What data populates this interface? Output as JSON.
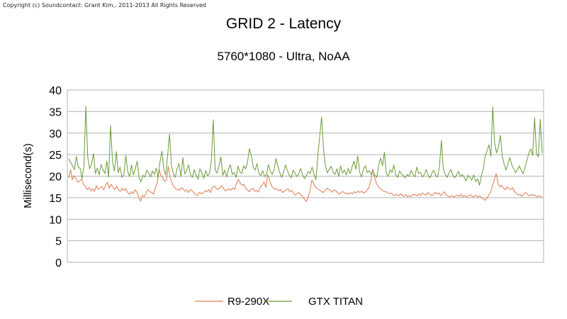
{
  "copyright": "Copyright (c) Soundcontact: Grant Kim,. 2011-2013 All Rights Reserved",
  "chart_data": {
    "type": "line",
    "title": "GRID 2 - Latency",
    "subtitle": "5760*1080 - Ultra, NoAA",
    "xlabel": "",
    "ylabel": "Millisecond(s)",
    "ylim": [
      0,
      40
    ],
    "yticks": [
      "0",
      "5",
      "10",
      "15",
      "20",
      "25",
      "30",
      "35",
      "40"
    ],
    "grid": "horizontal",
    "legend_position": "bottom",
    "series": [
      {
        "name": "R9-290X",
        "color": "#e07a4b",
        "values": [
          19.6,
          21.5,
          19.2,
          20.1,
          19.4,
          18.6,
          18.9,
          19.3,
          18.1,
          17.6,
          16.9,
          17.4,
          16.6,
          17.1,
          16.5,
          17.8,
          16.9,
          17.3,
          17.6,
          16.8,
          17.9,
          18.6,
          17.2,
          18.1,
          17.4,
          16.9,
          17.7,
          16.8,
          16.5,
          17.2,
          16.7,
          17.1,
          16.2,
          15.8,
          16.4,
          15.9,
          16.8,
          16.3,
          15.1,
          14.2,
          15.6,
          15.2,
          16.1,
          16.9,
          16.4,
          16.2,
          15.8,
          17.3,
          18.4,
          21.5,
          20.2,
          19.6,
          18.8,
          19.1,
          22.3,
          19.7,
          18.4,
          17.6,
          17.1,
          16.9,
          16.7,
          17.3,
          17.1,
          16.5,
          16.8,
          16.2,
          16.9,
          16.6,
          16.1,
          15.7,
          15.5,
          16.3,
          15.9,
          16.1,
          16.6,
          16.4,
          16.9,
          16.2,
          17.4,
          17.7,
          17.2,
          16.9,
          17.3,
          17.8,
          17.1,
          16.6,
          16.8,
          17.1,
          16.7,
          17.3,
          16.9,
          18.2,
          19.3,
          18.5,
          17.9,
          18.1,
          17.2,
          16.8,
          16.4,
          16.9,
          17.2,
          16.5,
          16.7,
          16.3,
          17.4,
          17.9,
          18.7,
          17.4,
          20.4,
          19.1,
          17.8,
          17.3,
          16.9,
          17.1,
          16.6,
          16.9,
          16.2,
          16.5,
          16.8,
          17.1,
          16.4,
          16.7,
          16.1,
          15.6,
          15.9,
          16.2,
          15.6,
          15.3,
          14.6,
          14.1,
          15.3,
          16.7,
          19.1,
          18.2,
          17.4,
          17.1,
          16.8,
          16.5,
          16.2,
          16.6,
          17.2,
          16.9,
          16.7,
          16.3,
          16.8,
          16.6,
          16.1,
          15.8,
          16.3,
          16.4,
          15.9,
          16.1,
          15.8,
          16.2,
          15.9,
          16.4,
          16.1,
          16.6,
          16.2,
          16.5,
          16.1,
          16.3,
          16.8,
          17.4,
          19.1,
          21.6,
          19.7,
          18.3,
          17.6,
          17.2,
          16.8,
          16.5,
          16.4,
          16.2,
          15.9,
          16.1,
          15.7,
          15.5,
          15.8,
          15.4,
          15.9,
          15.6,
          15.3,
          15.7,
          15.2,
          15.5,
          15.3,
          15.8,
          15.6,
          15.4,
          15.9,
          15.5,
          16.1,
          15.8,
          15.6,
          16.2,
          15.9,
          15.4,
          15.7,
          16.3,
          15.8,
          16.1,
          15.5,
          15.9,
          16.4,
          15.6,
          15.3,
          15.2,
          15.5,
          15.1,
          15.4,
          15.6,
          15.3,
          15.8,
          15.2,
          15.5,
          15.1,
          15.4,
          15.7,
          15.3,
          15.2,
          15.6,
          15.1,
          15.4,
          15.0,
          14.7,
          14.4,
          14.9,
          15.6,
          16.3,
          17.8,
          19.1,
          20.6,
          18.4,
          17.5,
          17.9,
          17.2,
          16.8,
          17.5,
          17.1,
          16.9,
          17.3,
          16.4,
          16.1,
          15.6,
          15.8,
          15.3,
          15.9,
          16.2,
          15.7,
          15.4,
          15.8,
          15.5,
          15.6,
          15.2,
          15.4,
          15.3,
          15.1
        ]
      },
      {
        "name": "GTX TITAN",
        "color": "#6a9b3a",
        "values": [
          24.1,
          23.2,
          22.4,
          21.5,
          24.6,
          22.1,
          21.8,
          19.4,
          22.6,
          36.2,
          24.4,
          21.7,
          22.9,
          25.2,
          20.6,
          21.9,
          20.3,
          22.7,
          21.5,
          20.6,
          23.5,
          19.8,
          31.8,
          23.4,
          21.2,
          25.7,
          20.8,
          22.1,
          19.7,
          20.4,
          24.8,
          21.1,
          19.9,
          22.6,
          20.3,
          21.7,
          23.5,
          19.6,
          18.7,
          20.2,
          19.8,
          21.4,
          20.7,
          19.8,
          21.2,
          20.4,
          21.9,
          19.6,
          23.4,
          25.8,
          21.6,
          20.3,
          24.7,
          29.8,
          22.4,
          20.6,
          19.7,
          21.8,
          22.9,
          19.9,
          24.3,
          20.5,
          21.3,
          22.6,
          20.4,
          19.7,
          21.5,
          20.2,
          19.3,
          21.7,
          20.8,
          19.5,
          21.3,
          20.1,
          20.6,
          23.6,
          33.1,
          21.4,
          20.7,
          22.3,
          24.5,
          20.2,
          21.4,
          19.8,
          21.6,
          22.7,
          20.4,
          20.9,
          19.7,
          22.3,
          21.1,
          20.6,
          22.4,
          21.7,
          23.2,
          26.4,
          24.8,
          22.1,
          21.4,
          22.9,
          20.6,
          20.1,
          21.3,
          19.9,
          20.4,
          22.7,
          21.2,
          20.4,
          21.5,
          24.1,
          22.3,
          20.8,
          19.7,
          20.9,
          22.6,
          21.3,
          20.2,
          19.6,
          21.4,
          20.7,
          19.9,
          20.6,
          21.8,
          20.3,
          19.4,
          20.2,
          21.1,
          20.6,
          22.1,
          20.4,
          19.2,
          24.6,
          29.3,
          33.7,
          26.2,
          22.4,
          20.8,
          21.6,
          22.3,
          20.9,
          20.4,
          21.7,
          19.9,
          22.4,
          20.7,
          21.4,
          20.3,
          21.8,
          20.6,
          22.1,
          23.5,
          21.6,
          24.7,
          20.9,
          19.8,
          21.6,
          22.4,
          20.8,
          21.3,
          20.4,
          21.1,
          20.2,
          19.7,
          22.6,
          24.2,
          22.4,
          25.6,
          20.7,
          19.9,
          21.5,
          20.8,
          22.6,
          20.3,
          19.7,
          21.2,
          20.6,
          20.1,
          19.6,
          20.4,
          19.9,
          21.3,
          20.5,
          19.8,
          22.1,
          20.6,
          20.9,
          19.8,
          20.4,
          21.6,
          20.2,
          19.6,
          20.7,
          21.4,
          20.1,
          19.8,
          22.4,
          28.3,
          21.6,
          20.4,
          19.7,
          20.8,
          21.5,
          20.2,
          19.6,
          20.3,
          21.1,
          19.9,
          20.4,
          19.7,
          18.9,
          20.2,
          19.6,
          19.1,
          20.3,
          18.7,
          19.4,
          17.9,
          20.1,
          21.6,
          24.7,
          25.8,
          27.3,
          24.6,
          36.1,
          27.8,
          25.4,
          26.8,
          29.5,
          24.6,
          22.8,
          21.4,
          22.9,
          24.3,
          22.6,
          21.7,
          20.8,
          21.5,
          22.4,
          21.3,
          20.6,
          22.1,
          23.7,
          25.4,
          26.3,
          24.8,
          33.6,
          25.1,
          24.5,
          33.2,
          25.4
        ]
      }
    ]
  },
  "legend": [
    {
      "name": "R9-290X",
      "color": "#e07a4b"
    },
    {
      "name": "GTX TITAN",
      "color": "#6a9b3a"
    }
  ]
}
